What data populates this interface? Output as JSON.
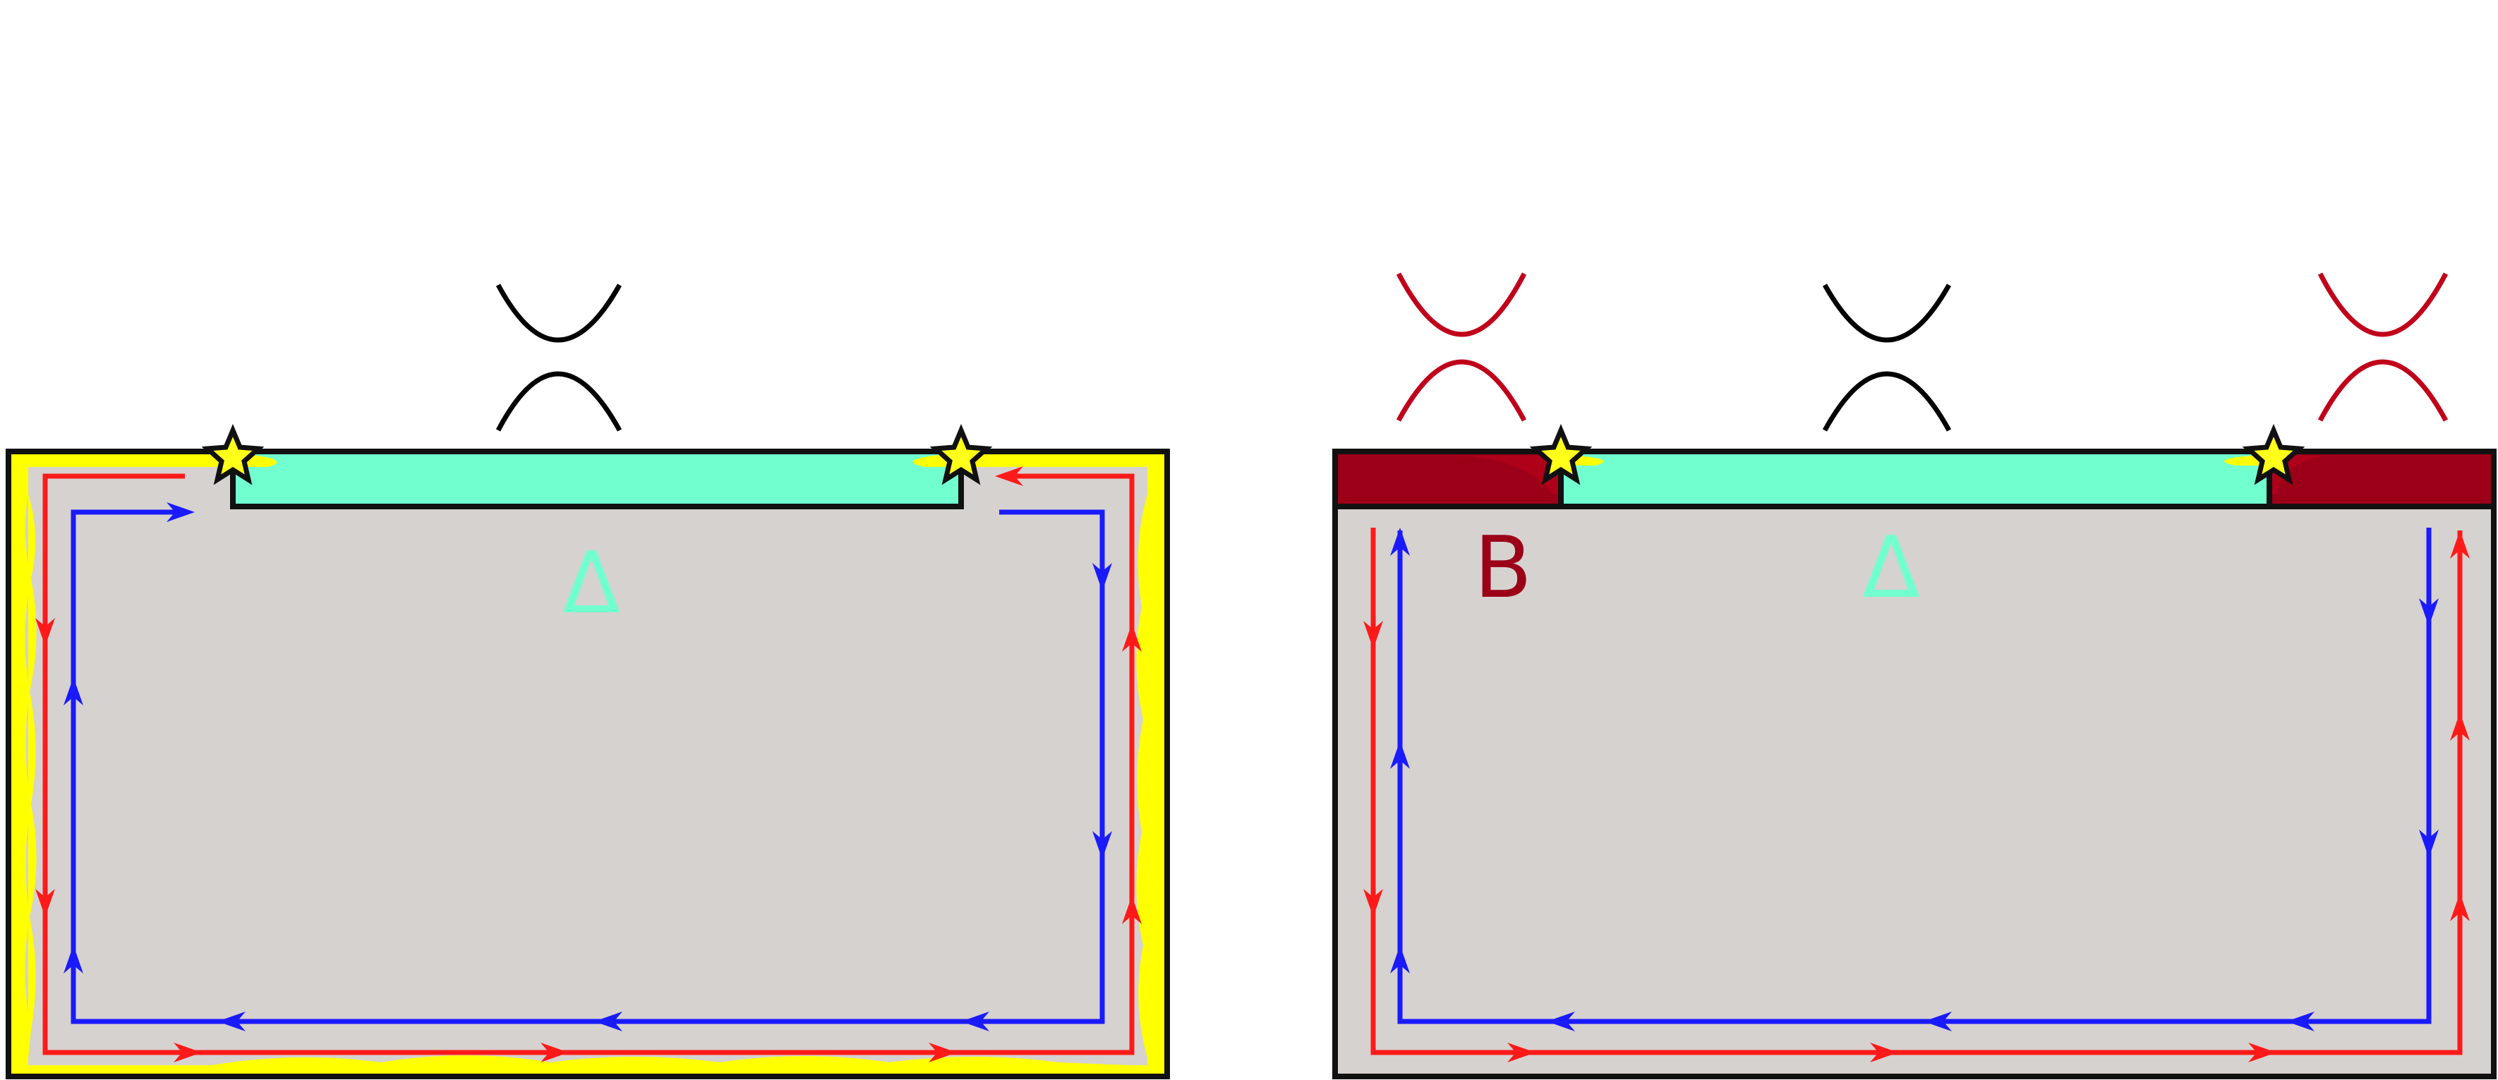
{
  "colors": {
    "background": "#ffffff",
    "bulk": "#d6d2d0",
    "yellow_edge": "#ffff00",
    "superconductor": "#72ffd0",
    "magnet": "#9b0018",
    "spectrum_black": "#000000",
    "spectrum_red": "#c0001a",
    "arrow_red": "#ff1a1a",
    "arrow_blue": "#1a1aff",
    "star": "#ffff1a",
    "outline": "#111111"
  },
  "left_panel": {
    "delta_label": "Δ"
  },
  "right_panel": {
    "delta_label": "Δ",
    "magnet_label": "B"
  },
  "icons": {
    "star": "star-icon",
    "spectrum": "gapped-dispersion-icon",
    "arrow": "arrow-head-icon"
  }
}
